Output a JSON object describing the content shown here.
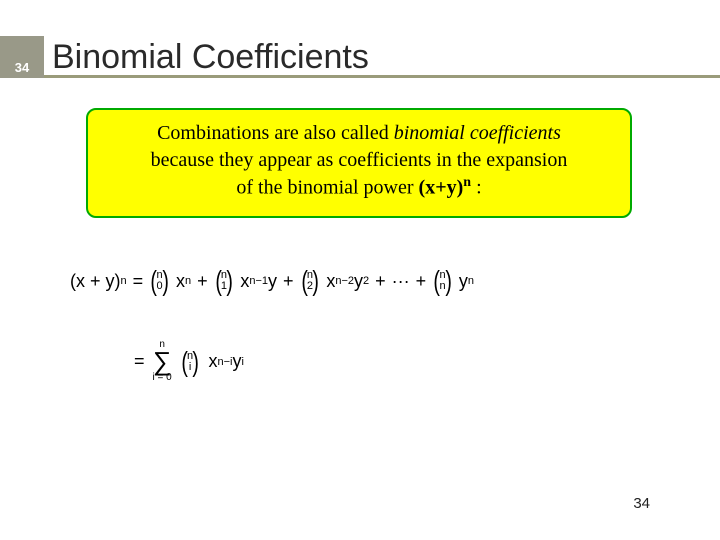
{
  "slide_number_top": "34",
  "title": "Binomial Coefficients",
  "box": {
    "line1a": "Combinations are also called ",
    "line1b": "binomial coefficients",
    "line2": "because they appear as coefficients in the expansion",
    "line3a": "of the binomial power ",
    "line3b": "(x+y)",
    "line3sup": "n",
    "line3c": " :"
  },
  "formula1": {
    "lhs_base": "(x + y)",
    "lhs_exp": "n",
    "eq": "=",
    "b0_top": "n",
    "b0_bot": "0",
    "t0_base": "x",
    "t0_exp": "n",
    "plus": "+",
    "b1_top": "n",
    "b1_bot": "1",
    "t1_base": "x",
    "t1_exp": "n−1",
    "t1_y": "y",
    "b2_top": "n",
    "b2_bot": "2",
    "t2_base": "x",
    "t2_exp": "n−2",
    "t2_y": "y",
    "t2_yexp": "2",
    "dots": "···",
    "bn_top": "n",
    "bn_bot": "n",
    "tn_y": "y",
    "tn_yexp": "n"
  },
  "formula2": {
    "eq": "=",
    "sigma_top": "n",
    "sigma_sym": "∑",
    "sigma_bot": "i = 0",
    "bi_top": "n",
    "bi_bot": "i",
    "x_base": "x",
    "x_exp": "n−i",
    "y_base": "y",
    "y_exp": "i"
  },
  "page_number_bottom": "34",
  "colors": {
    "title_underline": "#9a9b7a",
    "slide_num_bg": "#999988",
    "box_bg": "#ffff00",
    "box_border": "#00aa00"
  }
}
